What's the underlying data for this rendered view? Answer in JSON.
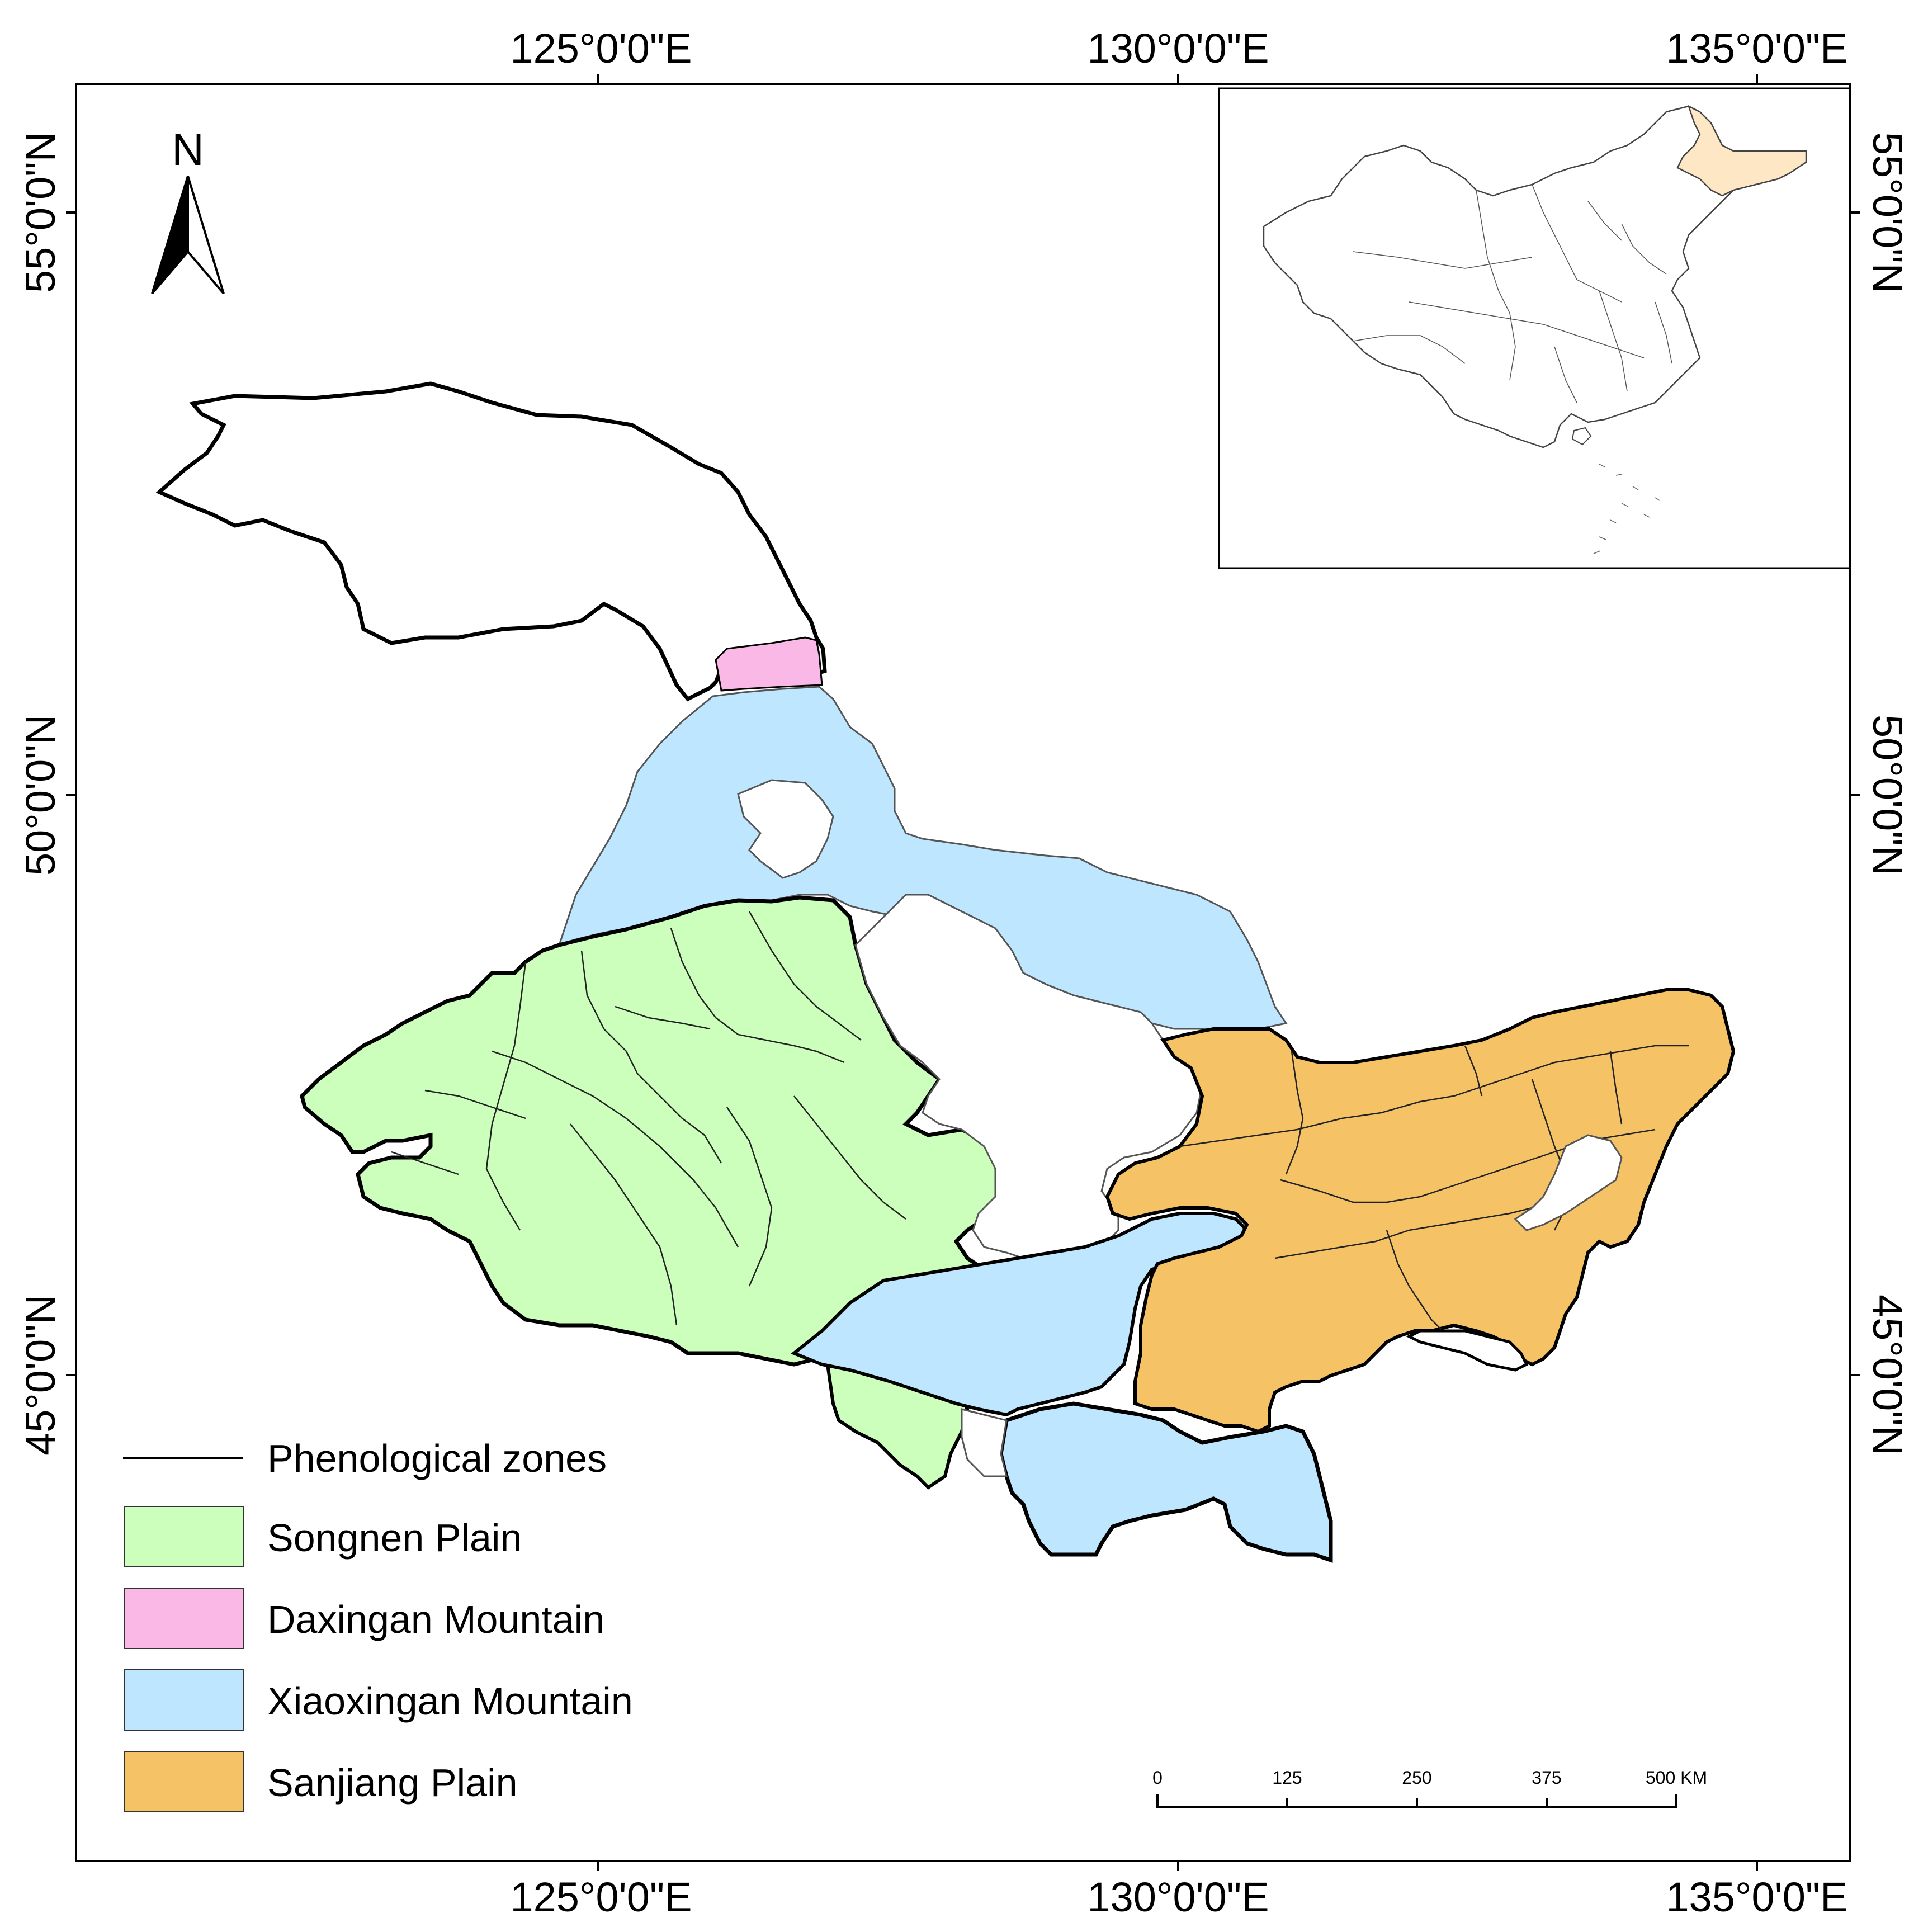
{
  "graticule": {
    "top_longitudes": [
      "125°0'0\"E",
      "130°0'0\"E",
      "135°0'0\"E"
    ],
    "bottom_longitudes": [
      "125°0'0\"E",
      "130°0'0\"E",
      "135°0'0\"E"
    ],
    "left_latitudes": [
      "55°0'0\"N",
      "50°0'0\"N",
      "45°0'0\"N"
    ],
    "right_latitudes": [
      "55°0'0\"N",
      "50°0'0\"N",
      "45°0'0\"N"
    ]
  },
  "north_arrow": {
    "label": "N",
    "icon": "north-arrow-icon"
  },
  "legend": {
    "items": [
      {
        "label": "Phenological zones",
        "kind": "line",
        "color": "#000000"
      },
      {
        "label": "Songnen Plain",
        "kind": "patch",
        "color": "#ccffbb"
      },
      {
        "label": "Daxingan Mountain",
        "kind": "patch",
        "color": "#f9b8e6"
      },
      {
        "label": "Xiaoxingan Mountain",
        "kind": "patch",
        "color": "#bfe6ff"
      },
      {
        "label": "Sanjiang Plain",
        "kind": "patch",
        "color": "#f5c265"
      }
    ]
  },
  "scale_bar": {
    "ticks": [
      "0",
      "125",
      "250",
      "375",
      "500 KM"
    ]
  },
  "inset": {
    "highlight_color": "#fde7c4",
    "region": "china-outline"
  },
  "colors": {
    "songnen": "#ccffbb",
    "daxingan": "#f9b8e6",
    "xiaoxingan": "#bfe6ff",
    "sanjiang": "#f5c265",
    "unassigned": "#ffffff"
  }
}
